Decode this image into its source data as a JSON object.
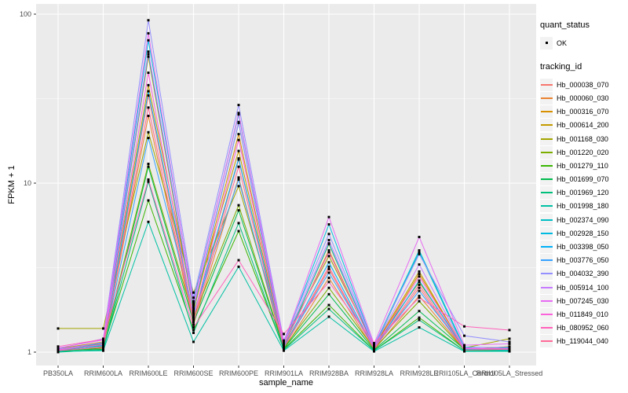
{
  "figure": {
    "background": "#FFFFFF",
    "panel_background": "#EBEBEB",
    "grid_major_color": "#FFFFFF",
    "grid_minor_color": "#FFFFFF",
    "tick_color": "#333333",
    "tick_label_color": "#4D4D4D",
    "point_color": "#000000"
  },
  "legend": {
    "quant_status_title": "quant_status",
    "ok_label": "OK",
    "tracking_id_title": "tracking_id",
    "key_background": "#F2F2F2"
  },
  "chart_data": {
    "type": "line",
    "title": "",
    "xlabel": "sample_name",
    "ylabel": "FPKM + 1",
    "y_scale": "log10",
    "y_ticks": [
      1,
      10,
      100
    ],
    "ylim": [
      1,
      100
    ],
    "grid": true,
    "legend_position": "right",
    "marker": "black-square quant_status=OK on every point",
    "categories": [
      "PB350LA",
      "RRIM600LA",
      "RRIM600LE",
      "RRIM600SE",
      "RRIM600PE",
      "RRIM901LA",
      "RRIM928BA",
      "RRIM928LA",
      "RRIM928LE",
      "RRII105LA_Control",
      "RRII105LA_Stressed"
    ],
    "series": [
      {
        "name": "Hb_000038_070",
        "color": "#F8766D",
        "values": [
          1.02,
          1.05,
          33,
          1.55,
          13.8,
          1.05,
          3.1,
          1.04,
          2.4,
          1.02,
          1.03
        ]
      },
      {
        "name": "Hb_000060_030",
        "color": "#EA8331",
        "values": [
          1.01,
          1.08,
          25,
          1.45,
          10.8,
          1.03,
          2.75,
          1.03,
          2.15,
          1.03,
          1.02
        ]
      },
      {
        "name": "Hb_000316_070",
        "color": "#D89000",
        "values": [
          1.03,
          1.12,
          56,
          1.75,
          19.5,
          1.08,
          4.0,
          1.06,
          2.9,
          1.05,
          1.04
        ]
      },
      {
        "name": "Hb_000614_200",
        "color": "#C49A00",
        "values": [
          1.05,
          1.15,
          38,
          1.9,
          15.5,
          1.1,
          4.35,
          1.08,
          3.0,
          1.04,
          1.06
        ]
      },
      {
        "name": "Hb_001168_030",
        "color": "#A3A500",
        "values": [
          1.38,
          1.38,
          20,
          2.25,
          9.6,
          1.17,
          3.7,
          1.1,
          2.6,
          1.06,
          1.2
        ]
      },
      {
        "name": "Hb_001220_020",
        "color": "#7CAE00",
        "values": [
          1.02,
          1.1,
          13,
          1.6,
          7.4,
          1.06,
          2.4,
          1.05,
          2.0,
          1.03,
          1.08
        ]
      },
      {
        "name": "Hb_001279_110",
        "color": "#39B600",
        "values": [
          1.01,
          1.06,
          7.9,
          1.35,
          5.2,
          1.04,
          1.9,
          1.02,
          1.6,
          1.02,
          1.03
        ]
      },
      {
        "name": "Hb_001699_070",
        "color": "#00BB4E",
        "values": [
          1.02,
          1.04,
          12.5,
          1.5,
          6.9,
          1.05,
          2.2,
          1.03,
          1.75,
          1.04,
          1.05
        ]
      },
      {
        "name": "Hb_001969_120",
        "color": "#00BF7D",
        "values": [
          1.0,
          1.03,
          10.2,
          1.3,
          5.8,
          1.03,
          1.8,
          1.02,
          1.55,
          1.02,
          1.02
        ]
      },
      {
        "name": "Hb_001998_180",
        "color": "#00C1A3",
        "values": [
          1.01,
          1.02,
          5.9,
          1.15,
          3.2,
          1.02,
          1.62,
          1.01,
          1.4,
          1.01,
          1.01
        ]
      },
      {
        "name": "Hb_002374_090",
        "color": "#00BFC4",
        "values": [
          1.03,
          1.09,
          58,
          1.8,
          22.7,
          1.09,
          4.4,
          1.07,
          3.9,
          1.05,
          1.05
        ]
      },
      {
        "name": "Hb_002928_150",
        "color": "#00BAE0",
        "values": [
          1.04,
          1.13,
          70,
          2.0,
          25.5,
          1.12,
          5.7,
          1.09,
          4.0,
          1.07,
          1.06
        ]
      },
      {
        "name": "Hb_003398_050",
        "color": "#00B0F6",
        "values": [
          1.02,
          1.07,
          35,
          1.65,
          14,
          1.07,
          3.4,
          1.05,
          2.65,
          1.04,
          1.03
        ]
      },
      {
        "name": "Hb_003776_050",
        "color": "#35A2FF",
        "values": [
          1.03,
          1.1,
          18.5,
          1.7,
          10.5,
          1.08,
          2.95,
          1.06,
          2.3,
          1.05,
          1.04
        ]
      },
      {
        "name": "Hb_004032_390",
        "color": "#9590FF",
        "values": [
          1.05,
          1.2,
          92,
          2.1,
          29,
          1.17,
          5.0,
          1.1,
          3.8,
          1.25,
          1.15
        ]
      },
      {
        "name": "Hb_005914_100",
        "color": "#C77CFF",
        "values": [
          1.04,
          1.14,
          60,
          1.85,
          23,
          1.13,
          4.6,
          1.08,
          3.3,
          1.06,
          1.07
        ]
      },
      {
        "name": "Hb_007245_030",
        "color": "#E76BF3",
        "values": [
          1.06,
          1.18,
          77,
          1.95,
          26,
          1.14,
          6.3,
          1.12,
          4.8,
          1.1,
          1.12
        ]
      },
      {
        "name": "Hb_011849_010",
        "color": "#FA62DB",
        "values": [
          1.03,
          1.11,
          45,
          1.6,
          18,
          1.1,
          3.9,
          1.06,
          2.8,
          1.05,
          1.05
        ]
      },
      {
        "name": "Hb_080952_060",
        "color": "#FF62BC",
        "values": [
          1.08,
          1.19,
          10.5,
          1.4,
          3.5,
          1.28,
          2.6,
          1.13,
          2.1,
          1.42,
          1.35
        ]
      },
      {
        "name": "Hb_119044_040",
        "color": "#FF6A98",
        "values": [
          1.02,
          1.07,
          28,
          1.5,
          12.5,
          1.06,
          3.2,
          1.04,
          2.5,
          1.03,
          1.04
        ]
      }
    ]
  }
}
